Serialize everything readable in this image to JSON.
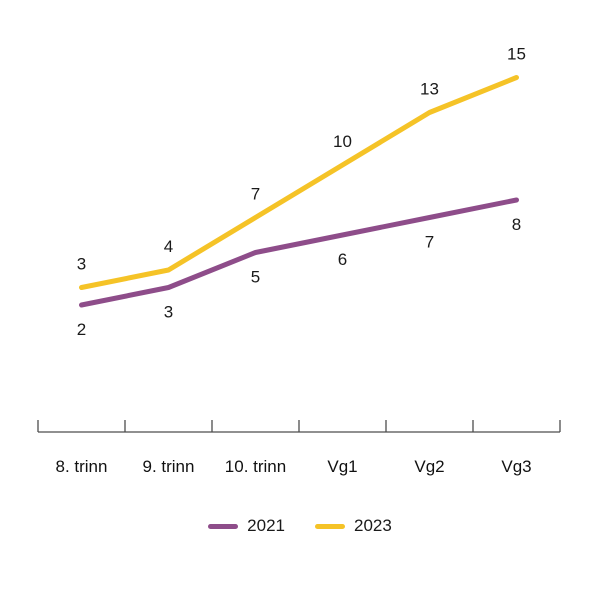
{
  "chart_data": {
    "type": "line",
    "categories": [
      "8. trinn",
      "9. trinn",
      "10. trinn",
      "Vg1",
      "Vg2",
      "Vg3"
    ],
    "series": [
      {
        "name": "2021",
        "color": "#8e4d8a",
        "values": [
          2,
          3,
          5,
          6,
          7,
          8
        ],
        "label_position": "below"
      },
      {
        "name": "2023",
        "color": "#f5c327",
        "values": [
          3,
          4,
          7,
          10,
          13,
          15
        ],
        "label_position": "above"
      }
    ],
    "title": "",
    "xlabel": "",
    "ylabel": "",
    "ylim": [
      0,
      16
    ],
    "grid": false,
    "data_labels": true,
    "legend_position": "bottom"
  },
  "colors": {
    "background": "#ffffff",
    "axis": "#4d4d4d",
    "label_text": "#1a1a1a"
  }
}
